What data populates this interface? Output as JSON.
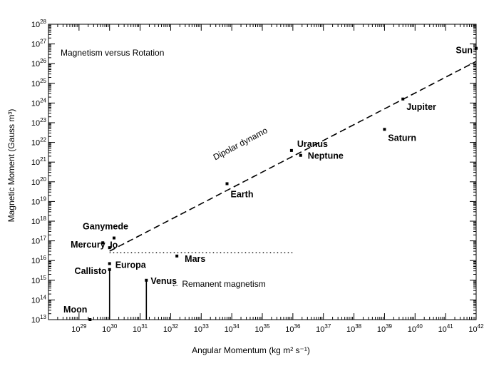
{
  "chart_data": {
    "type": "scatter",
    "title": "Magnetism versus Rotation",
    "xlabel": "Angular Momentum (kg m² s⁻¹)",
    "ylabel": "Magnetic Moment (Gauss m³)",
    "xscale": "log",
    "yscale": "log",
    "xlim": [
      1e+28,
      1e+42
    ],
    "ylim": [
      10000000000000.0,
      1e+28
    ],
    "grid": false,
    "x_ticks": [
      "10^29",
      "10^30",
      "10^31",
      "10^32",
      "10^33",
      "10^34",
      "10^35",
      "10^36",
      "10^37",
      "10^38",
      "10^39",
      "10^40",
      "10^41",
      "10^42"
    ],
    "y_ticks": [
      "10^13",
      "10^14",
      "10^15",
      "10^16",
      "10^17",
      "10^18",
      "10^19",
      "10^20",
      "10^21",
      "10^22",
      "10^23",
      "10^24",
      "10^25",
      "10^26",
      "10^27",
      "10^28"
    ],
    "points": [
      {
        "name": "Sun",
        "x": 1e+42,
        "y": 6e+26
      },
      {
        "name": "Jupiter",
        "x": 4e+39,
        "y": 1.6e+24
      },
      {
        "name": "Saturn",
        "x": 1e+39,
        "y": 4.6e+22
      },
      {
        "name": "Uranus",
        "x": 9e+35,
        "y": 3.9e+21
      },
      {
        "name": "Neptune",
        "x": 1.8e+36,
        "y": 2.2e+21
      },
      {
        "name": "Earth",
        "x": 7e+33,
        "y": 8e+19
      },
      {
        "name": "Ganymede",
        "x": 1.4e+30,
        "y": 1.4e+17
      },
      {
        "name": "Io",
        "x": 6e+29,
        "y": 8e+16
      },
      {
        "name": "Mercury",
        "x": 1e+30,
        "y": 4.5e+16
      },
      {
        "name": "Mars",
        "x": 1.6e+32,
        "y": 1.7e+16
      },
      {
        "name": "Europa",
        "x": 1e+30,
        "y": 7000000000000000.0
      },
      {
        "name": "Callisto",
        "x": 1e+30,
        "y": 3500000000000000.0
      },
      {
        "name": "Venus",
        "x": 1.6e+31,
        "y": 1000000000000000.0
      },
      {
        "name": "Moon",
        "x": 2.3e+29,
        "y": 10000000000000.0
      }
    ],
    "upper_limits": [
      {
        "name": "Callisto",
        "x": 1e+30,
        "y": 3500000000000000.0
      },
      {
        "name": "Venus",
        "x": 1.6e+31,
        "y": 1000000000000000.0
      }
    ],
    "lines": [
      {
        "name": "Dipolar dynamo",
        "style": "dashed",
        "x": [
          1e+30,
          1e+42
        ],
        "y": [
          3e+16,
          1.3e+26
        ]
      },
      {
        "name": "Remanent magnetism",
        "style": "dotted",
        "x": [
          1e+30,
          1e+36
        ],
        "y": [
          2.5e+16,
          2.5e+16
        ]
      }
    ],
    "annotations": [
      "Dipolar dynamo",
      "← Remanent magnetism"
    ]
  }
}
